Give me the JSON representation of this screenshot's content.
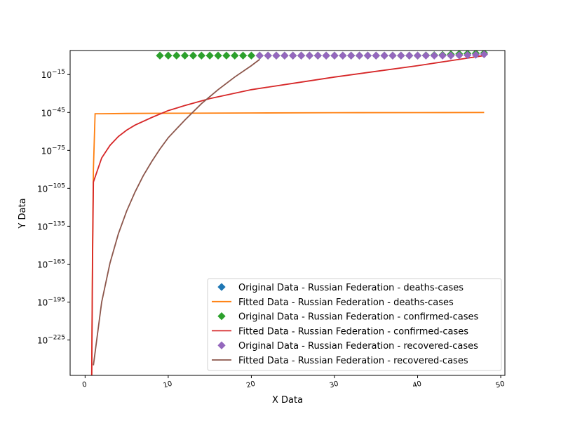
{
  "chart_data": {
    "type": "line",
    "xlabel": "X Data",
    "ylabel": "Y Data",
    "xlim": [
      -1.8,
      50.5
    ],
    "ylim_exponent": [
      -253,
      4
    ],
    "y_scale": "log",
    "x_ticks": [
      0,
      10,
      20,
      30,
      40,
      50
    ],
    "y_ticks": [
      {
        "exp": -15,
        "label": "−15"
      },
      {
        "exp": -45,
        "label": "−45"
      },
      {
        "exp": -75,
        "label": "−75"
      },
      {
        "exp": -105,
        "label": "−105"
      },
      {
        "exp": -135,
        "label": "−135"
      },
      {
        "exp": -165,
        "label": "−165"
      },
      {
        "exp": -195,
        "label": "−195"
      },
      {
        "exp": -225,
        "label": "−225"
      }
    ],
    "y_tick_base": "10",
    "legend_position": "lower-right",
    "series": [
      {
        "name": "Original Data - Russian Federation - deaths-cases",
        "style": "marker",
        "color": "#1f77b4",
        "x": [],
        "y_exp": []
      },
      {
        "name": "Fitted Data - Russian Federation - deaths-cases",
        "style": "line",
        "color": "#ff7f0e",
        "x": [
          0.8,
          0.9,
          1.0,
          1.2,
          2,
          5,
          10,
          20,
          30,
          40,
          48
        ],
        "y_exp": [
          -253,
          -150,
          -90,
          -46,
          -46,
          -45.8,
          -45.6,
          -45.4,
          -45.2,
          -45.1,
          -45
        ]
      },
      {
        "name": "Original Data - Russian Federation - confirmed-cases",
        "style": "marker",
        "color": "#2ca02c",
        "x": [
          9,
          10,
          11,
          12,
          13,
          14,
          15,
          16,
          17,
          18,
          19,
          20,
          21,
          22,
          23,
          24,
          25,
          26,
          27,
          28,
          29,
          30,
          31,
          32,
          33,
          34,
          35,
          36,
          37,
          38,
          39,
          40,
          41,
          42,
          43,
          44,
          45,
          46,
          47,
          48
        ],
        "y_exp": [
          0,
          0,
          0,
          0,
          0,
          0,
          0,
          0,
          0,
          0,
          0,
          0,
          0,
          0,
          0,
          0,
          0,
          0,
          0,
          0,
          0,
          0,
          0,
          0,
          0,
          0,
          0,
          0,
          0,
          0,
          0,
          0,
          0.2,
          0.3,
          0.5,
          1,
          1.3,
          1.6,
          1.8,
          2
        ]
      },
      {
        "name": "Fitted Data - Russian Federation - confirmed-cases",
        "style": "line",
        "color": "#d62728",
        "x": [
          0.8,
          0.9,
          1,
          2,
          3,
          4,
          5,
          6,
          8,
          10,
          12,
          15,
          20,
          25,
          30,
          35,
          40,
          45,
          48
        ],
        "y_exp": [
          -253,
          -160,
          -100,
          -81,
          -71,
          -64,
          -59,
          -55,
          -49,
          -43.5,
          -39.5,
          -34,
          -27,
          -22,
          -17,
          -12.5,
          -8,
          -3,
          0
        ]
      },
      {
        "name": "Original Data - Russian Federation - recovered-cases",
        "style": "marker",
        "color": "#9467bd",
        "x": [
          21,
          22,
          23,
          24,
          25,
          26,
          27,
          28,
          29,
          30,
          31,
          32,
          33,
          34,
          35,
          36,
          37,
          38,
          39,
          40,
          41,
          42,
          43,
          44,
          45,
          46,
          47,
          48
        ],
        "y_exp": [
          0,
          0,
          0,
          0,
          0,
          0,
          0,
          0,
          0,
          0,
          0,
          0,
          0,
          0,
          0,
          0,
          0,
          0,
          0,
          0,
          0,
          0,
          0,
          0,
          0.2,
          0.4,
          0.6,
          1
        ]
      },
      {
        "name": "Fitted Data - Russian Federation - recovered-cases",
        "style": "line",
        "color": "#8c564b",
        "x": [
          1,
          2,
          3,
          4,
          5,
          6,
          7,
          8,
          9,
          10,
          12,
          14,
          16,
          18,
          20,
          21
        ],
        "y_exp": [
          -245,
          -195,
          -164,
          -141,
          -123,
          -108,
          -95,
          -84,
          -74,
          -65,
          -51,
          -38,
          -27,
          -17,
          -8,
          -3
        ]
      }
    ]
  }
}
